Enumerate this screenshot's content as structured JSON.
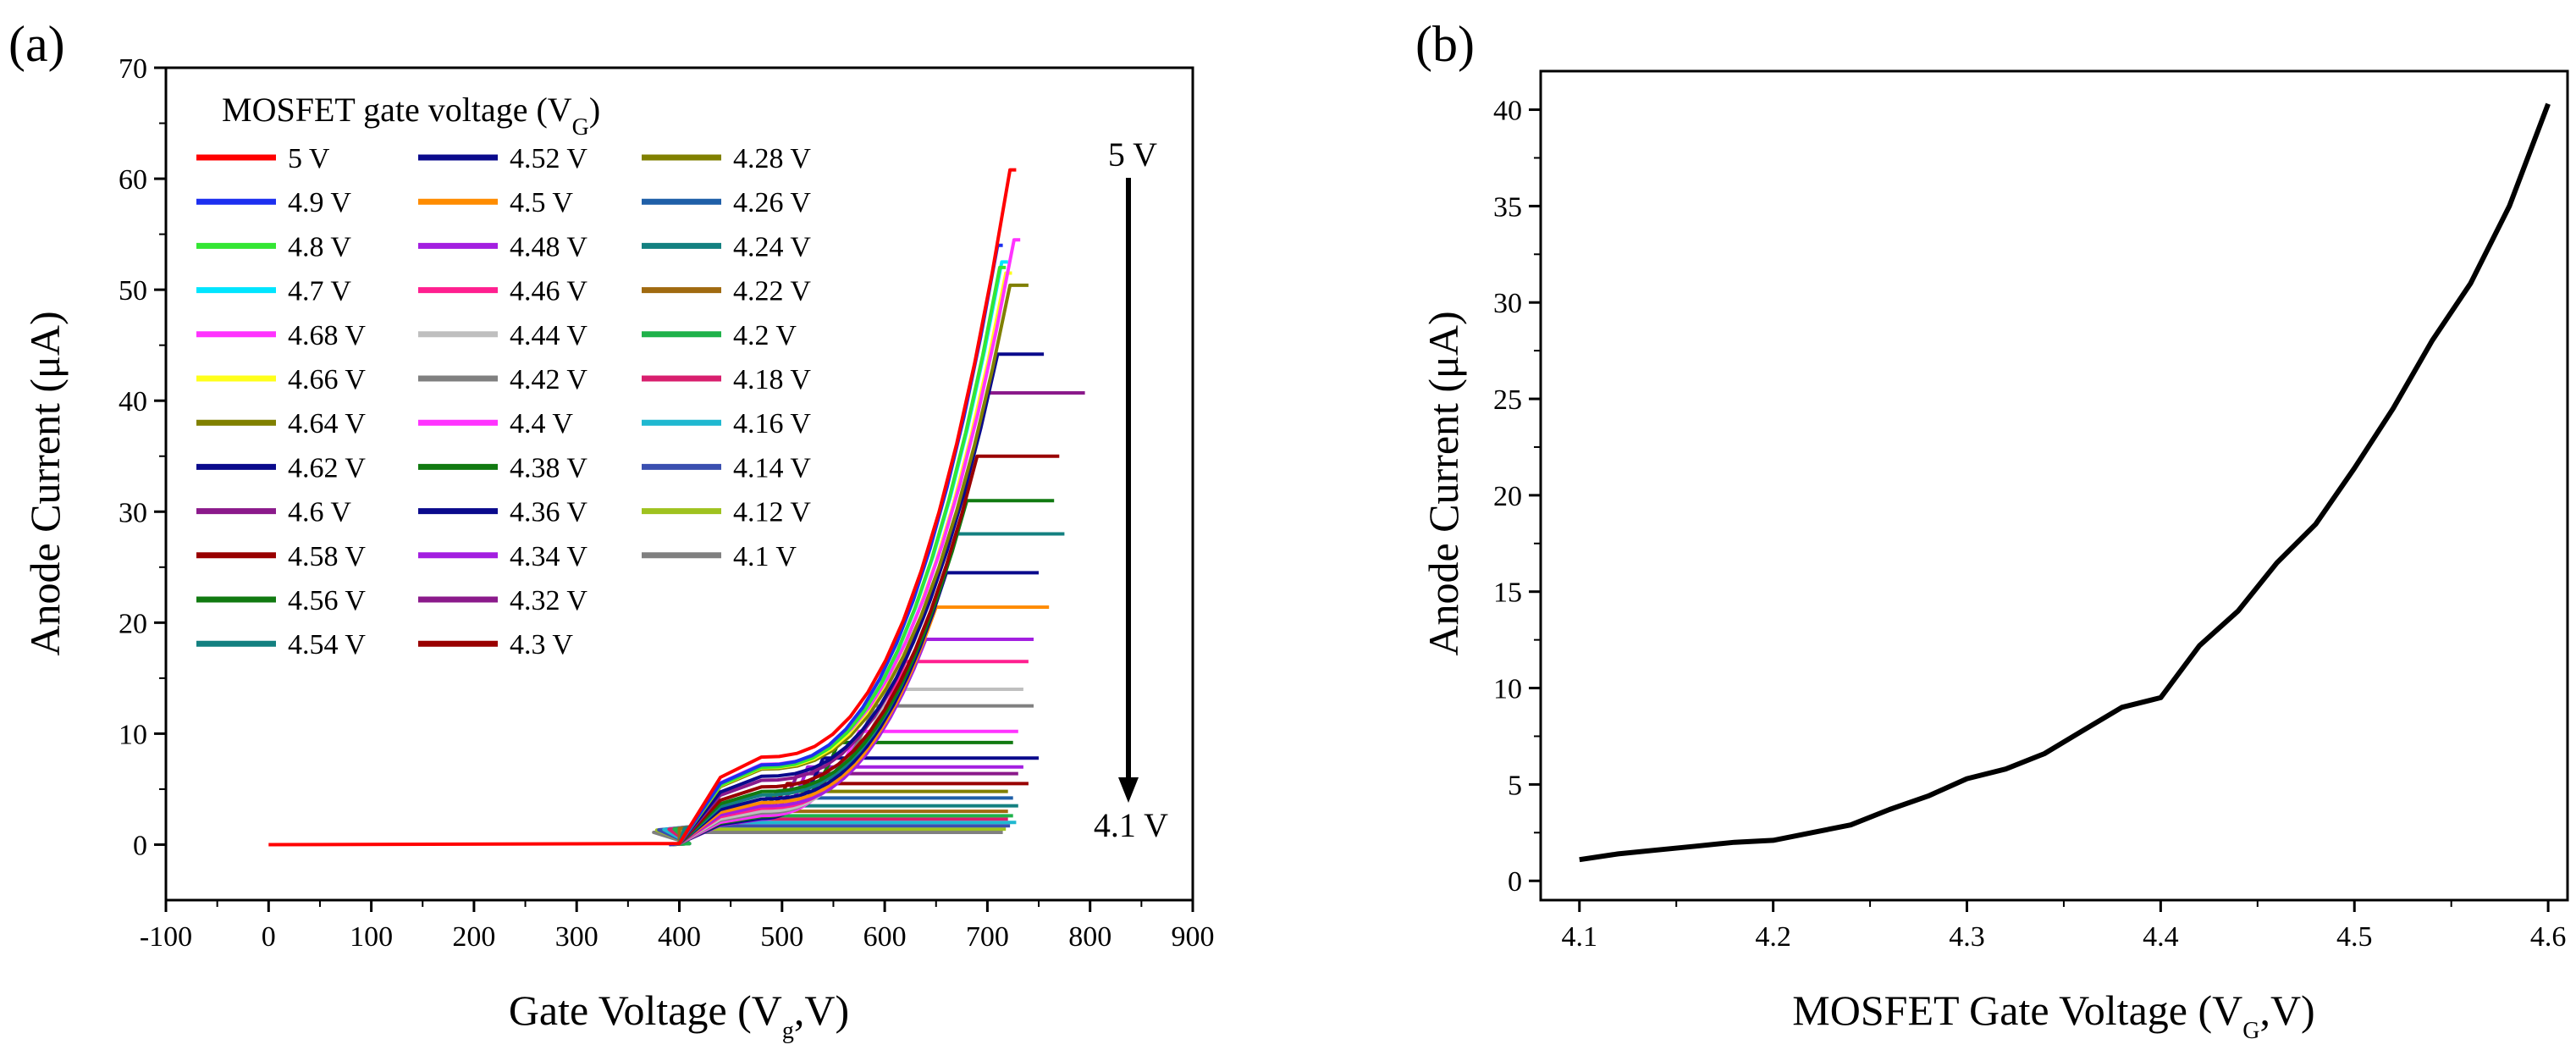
{
  "chart_data": [
    {
      "panel": "(a)",
      "type": "line",
      "xlabel": "Gate Voltage (Vg,V)",
      "xlabel_main": "Gate Voltage (V",
      "xlabel_sub": "g",
      "xlabel_tail": ",V)",
      "ylabel": "Anode Current (μA)",
      "xlim": [
        -100,
        900
      ],
      "ylim": [
        -5,
        70
      ],
      "xticks": [
        "-100",
        "0",
        "100",
        "200",
        "300",
        "400",
        "500",
        "600",
        "700",
        "800",
        "900"
      ],
      "xtick_values": [
        -100,
        0,
        100,
        200,
        300,
        400,
        500,
        600,
        700,
        800,
        900
      ],
      "yticks": [
        "0",
        "10",
        "20",
        "30",
        "40",
        "50",
        "60",
        "70"
      ],
      "ytick_values": [
        0,
        10,
        20,
        30,
        40,
        50,
        60,
        70
      ],
      "legend_title_main": "MOSFET gate voltage (V",
      "legend_title_sub": "G",
      "legend_title_tail": ")",
      "legend_title": "MOSFET gate voltage (VG)",
      "arrow_top_label": "5 V",
      "arrow_bottom_label": "4.1 V",
      "series": [
        {
          "name": "5 V",
          "color": "#ff0000",
          "step_x": 480,
          "rise_end_x": 722,
          "plateau": 60.8,
          "end_x": 728,
          "start_x": 0
        },
        {
          "name": "4.9 V",
          "color": "#1c2ff0",
          "step_x": 480,
          "rise_end_x": 710,
          "plateau": 54,
          "end_x": 715,
          "start_x": 390
        },
        {
          "name": "4.8 V",
          "color": "#33e633",
          "step_x": 480,
          "rise_end_x": 712,
          "plateau": 52,
          "end_x": 718,
          "start_x": 390
        },
        {
          "name": "4.7 V",
          "color": "#00e5ff",
          "step_x": 480,
          "rise_end_x": 714,
          "plateau": 52.5,
          "end_x": 720,
          "start_x": 390
        },
        {
          "name": "4.68 V",
          "color": "#ff33ff",
          "step_x": 480,
          "rise_end_x": 726,
          "plateau": 54.5,
          "end_x": 732,
          "start_x": 390
        },
        {
          "name": "4.66 V",
          "color": "#ffff1a",
          "step_x": 480,
          "rise_end_x": 718,
          "plateau": 51.5,
          "end_x": 724,
          "start_x": 390
        },
        {
          "name": "4.64 V",
          "color": "#808000",
          "step_x": 480,
          "rise_end_x": 722,
          "plateau": 50.4,
          "end_x": 740,
          "start_x": 390
        },
        {
          "name": "4.62 V",
          "color": "#0a0a8c",
          "step_x": 480,
          "rise_end_x": 710,
          "plateau": 44.2,
          "end_x": 755,
          "start_x": 390
        },
        {
          "name": "4.6 V",
          "color": "#8b1a8b",
          "step_x": 480,
          "rise_end_x": 700,
          "plateau": 40.7,
          "end_x": 795,
          "start_x": 390
        },
        {
          "name": "4.58 V",
          "color": "#990000",
          "step_x": 480,
          "rise_end_x": 690,
          "plateau": 35,
          "end_x": 770,
          "start_x": 390
        },
        {
          "name": "4.56 V",
          "color": "#117a11",
          "step_x": 480,
          "rise_end_x": 680,
          "plateau": 31,
          "end_x": 765,
          "start_x": 390
        },
        {
          "name": "4.54 V",
          "color": "#138080",
          "step_x": 480,
          "rise_end_x": 670,
          "plateau": 28,
          "end_x": 775,
          "start_x": 390
        },
        {
          "name": "4.52 V",
          "color": "#0a0a8c",
          "step_x": 480,
          "rise_end_x": 660,
          "plateau": 24.5,
          "end_x": 750,
          "start_x": 390
        },
        {
          "name": "4.5 V",
          "color": "#ff8c00",
          "step_x": 480,
          "rise_end_x": 650,
          "plateau": 21.4,
          "end_x": 760,
          "start_x": 390
        },
        {
          "name": "4.48 V",
          "color": "#a31fe0",
          "step_x": 480,
          "rise_end_x": 640,
          "plateau": 18.5,
          "end_x": 745,
          "start_x": 390
        },
        {
          "name": "4.46 V",
          "color": "#ff1f8f",
          "step_x": 480,
          "rise_end_x": 620,
          "plateau": 16.5,
          "end_x": 740,
          "start_x": 390
        },
        {
          "name": "4.44 V",
          "color": "#bfbfbf",
          "step_x": 480,
          "rise_end_x": 605,
          "plateau": 14,
          "end_x": 735,
          "start_x": 390
        },
        {
          "name": "4.42 V",
          "color": "#808080",
          "step_x": 480,
          "rise_end_x": 590,
          "plateau": 12.5,
          "end_x": 745,
          "start_x": 390
        },
        {
          "name": "4.4 V",
          "color": "#ff33ff",
          "step_x": 480,
          "rise_end_x": 575,
          "plateau": 10.2,
          "end_x": 730,
          "start_x": 390
        },
        {
          "name": "4.38 V",
          "color": "#117a11",
          "step_x": 480,
          "rise_end_x": 555,
          "plateau": 9.2,
          "end_x": 725,
          "start_x": 390
        },
        {
          "name": "4.36 V",
          "color": "#0a0a8c",
          "step_x": 480,
          "rise_end_x": 540,
          "plateau": 7.8,
          "end_x": 750,
          "start_x": 390
        },
        {
          "name": "4.34 V",
          "color": "#a31fe0",
          "step_x": 480,
          "rise_end_x": 525,
          "plateau": 7,
          "end_x": 735,
          "start_x": 390
        },
        {
          "name": "4.32 V",
          "color": "#8b1a8b",
          "step_x": 470,
          "rise_end_x": 515,
          "plateau": 6.4,
          "end_x": 730,
          "start_x": 390
        },
        {
          "name": "4.3 V",
          "color": "#990000",
          "step_x": 460,
          "rise_end_x": 505,
          "plateau": 5.5,
          "end_x": 740,
          "start_x": 390
        },
        {
          "name": "4.28 V",
          "color": "#808000",
          "step_x": 455,
          "rise_end_x": 495,
          "plateau": 4.8,
          "end_x": 720,
          "start_x": 390
        },
        {
          "name": "4.26 V",
          "color": "#1f5fa8",
          "step_x": 450,
          "rise_end_x": 485,
          "plateau": 4.2,
          "end_x": 725,
          "start_x": 390
        },
        {
          "name": "4.24 V",
          "color": "#138080",
          "step_x": 445,
          "rise_end_x": 475,
          "plateau": 3.5,
          "end_x": 730,
          "start_x": 390
        },
        {
          "name": "4.22 V",
          "color": "#a06a10",
          "step_x": 440,
          "rise_end_x": 470,
          "plateau": 3.0,
          "end_x": 720,
          "start_x": 390
        },
        {
          "name": "4.2 V",
          "color": "#1fb24a",
          "step_x": 435,
          "rise_end_x": 465,
          "plateau": 2.6,
          "end_x": 725,
          "start_x": 390
        },
        {
          "name": "4.18 V",
          "color": "#d81f6e",
          "step_x": 430,
          "rise_end_x": 460,
          "plateau": 2.3,
          "end_x": 720,
          "start_x": 390
        },
        {
          "name": "4.16 V",
          "color": "#1fb8d0",
          "step_x": 425,
          "rise_end_x": 455,
          "plateau": 2.0,
          "end_x": 728,
          "start_x": 390
        },
        {
          "name": "4.14 V",
          "color": "#3a4fb0",
          "step_x": 420,
          "rise_end_x": 450,
          "plateau": 1.7,
          "end_x": 722,
          "start_x": 390
        },
        {
          "name": "4.12 V",
          "color": "#9fc21f",
          "step_x": 418,
          "rise_end_x": 445,
          "plateau": 1.4,
          "end_x": 718,
          "start_x": 390
        },
        {
          "name": "4.1 V",
          "color": "#808080",
          "step_x": 415,
          "rise_end_x": 440,
          "plateau": 1.1,
          "end_x": 715,
          "start_x": 390
        }
      ]
    },
    {
      "panel": "(b)",
      "type": "line",
      "xlabel": "MOSFET Gate Voltage (VG,V)",
      "xlabel_main": "MOSFET Gate Voltage (V",
      "xlabel_sub": "G",
      "xlabel_tail": ",V)",
      "ylabel": "Anode Current (μA)",
      "xlim": [
        4.08,
        4.61
      ],
      "ylim": [
        -1,
        42
      ],
      "xticks": [
        "4.1",
        "4.2",
        "4.3",
        "4.4",
        "4.5",
        "4.6"
      ],
      "xtick_values": [
        4.1,
        4.2,
        4.3,
        4.4,
        4.5,
        4.6
      ],
      "yticks": [
        "0",
        "5",
        "10",
        "15",
        "20",
        "25",
        "30",
        "35",
        "40"
      ],
      "ytick_values": [
        0,
        5,
        10,
        15,
        20,
        25,
        30,
        35,
        40
      ],
      "series": [
        {
          "name": "Anode current",
          "color": "#000000",
          "x": [
            4.1,
            4.12,
            4.14,
            4.16,
            4.18,
            4.2,
            4.22,
            4.24,
            4.26,
            4.28,
            4.3,
            4.32,
            4.34,
            4.36,
            4.38,
            4.4,
            4.42,
            4.44,
            4.46,
            4.48,
            4.5,
            4.52,
            4.54,
            4.56,
            4.58,
            4.6
          ],
          "y": [
            1.1,
            1.4,
            1.6,
            1.8,
            2.0,
            2.1,
            2.5,
            2.9,
            3.7,
            4.4,
            5.3,
            5.8,
            6.6,
            7.8,
            9.0,
            9.5,
            12.2,
            14.0,
            16.5,
            18.5,
            21.4,
            24.5,
            28.0,
            31.0,
            35.0,
            40.3
          ]
        }
      ]
    }
  ]
}
